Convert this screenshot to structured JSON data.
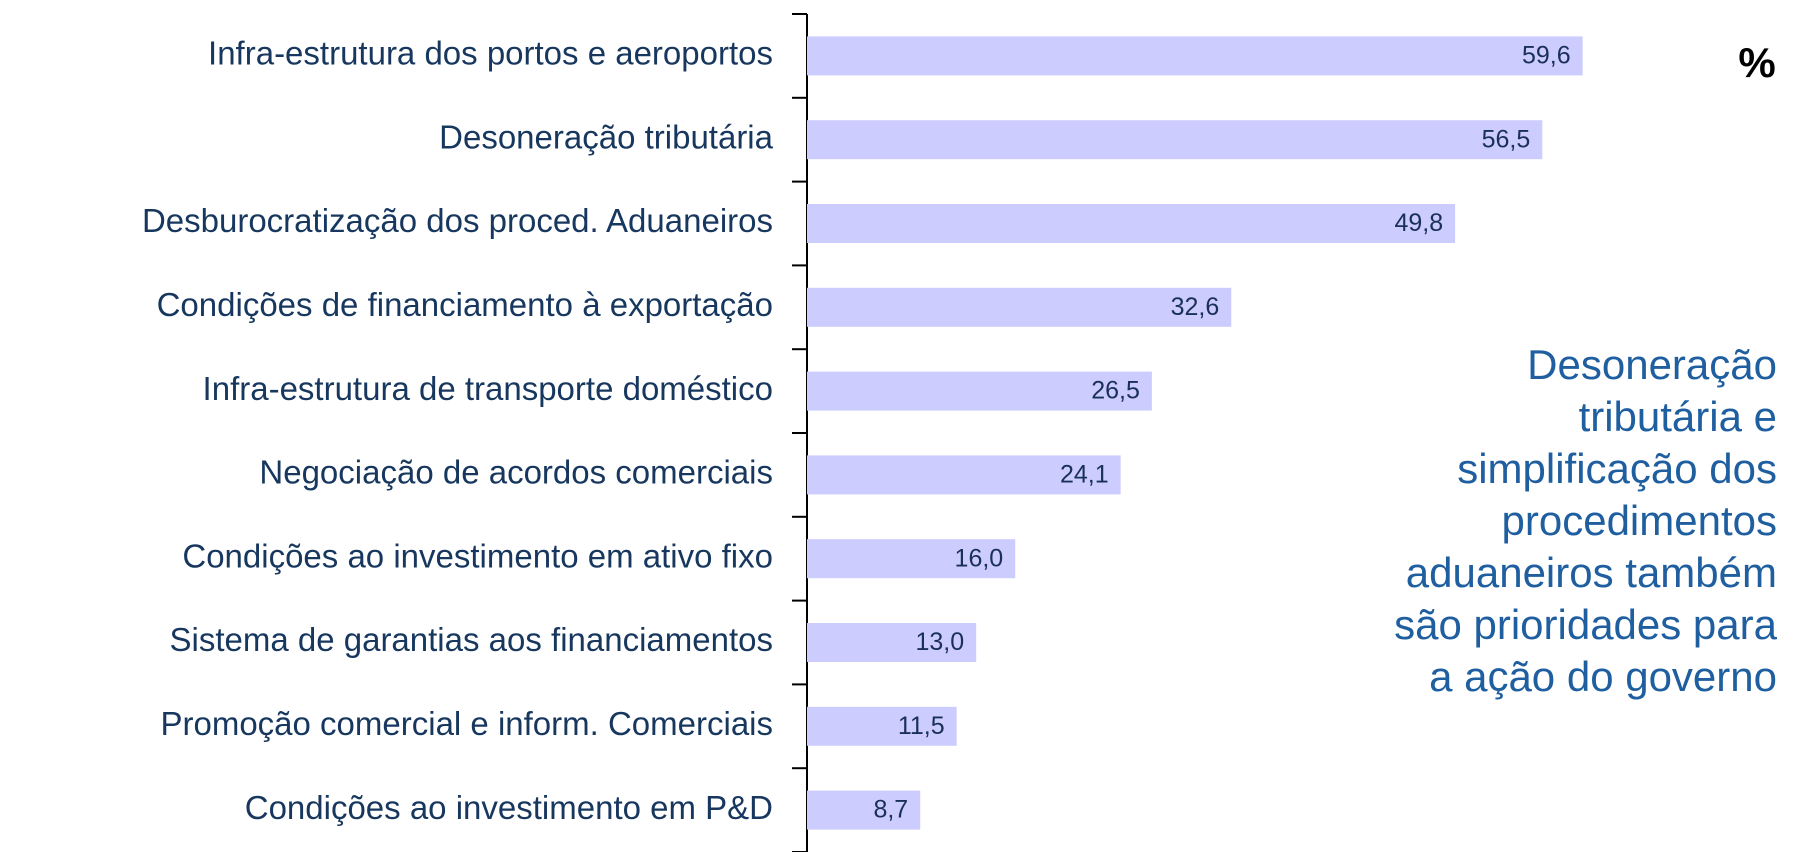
{
  "chart_data": {
    "type": "bar",
    "orientation": "horizontal",
    "categories": [
      "Infra-estrutura dos portos e aeroportos",
      "Desoneração tributária",
      "Desburocratização dos proced. Aduaneiros",
      "Condições de financiamento à exportação",
      "Infra-estrutura de transporte doméstico",
      "Negociação de acordos comerciais",
      "Condições ao investimento em ativo fixo",
      "Sistema de garantias aos financiamentos",
      "Promoção comercial e inform. Comerciais",
      "Condições ao investimento em P&D"
    ],
    "values": [
      59.6,
      56.5,
      49.8,
      32.6,
      26.5,
      24.1,
      16.0,
      13.0,
      11.5,
      8.7
    ],
    "value_labels": [
      "59,6",
      "56,5",
      "49,8",
      "32,6",
      "26,5",
      "24,1",
      "16,0",
      "13,0",
      "11,5",
      "8,7"
    ],
    "color": "#ccccff",
    "xlim": [
      0,
      70
    ],
    "unit_label": "%",
    "annotation": [
      "Desoneração",
      "tributária e",
      "simplificação dos",
      "procedimentos",
      "aduaneiros também",
      "são prioridades para",
      "a ação do governo"
    ]
  }
}
